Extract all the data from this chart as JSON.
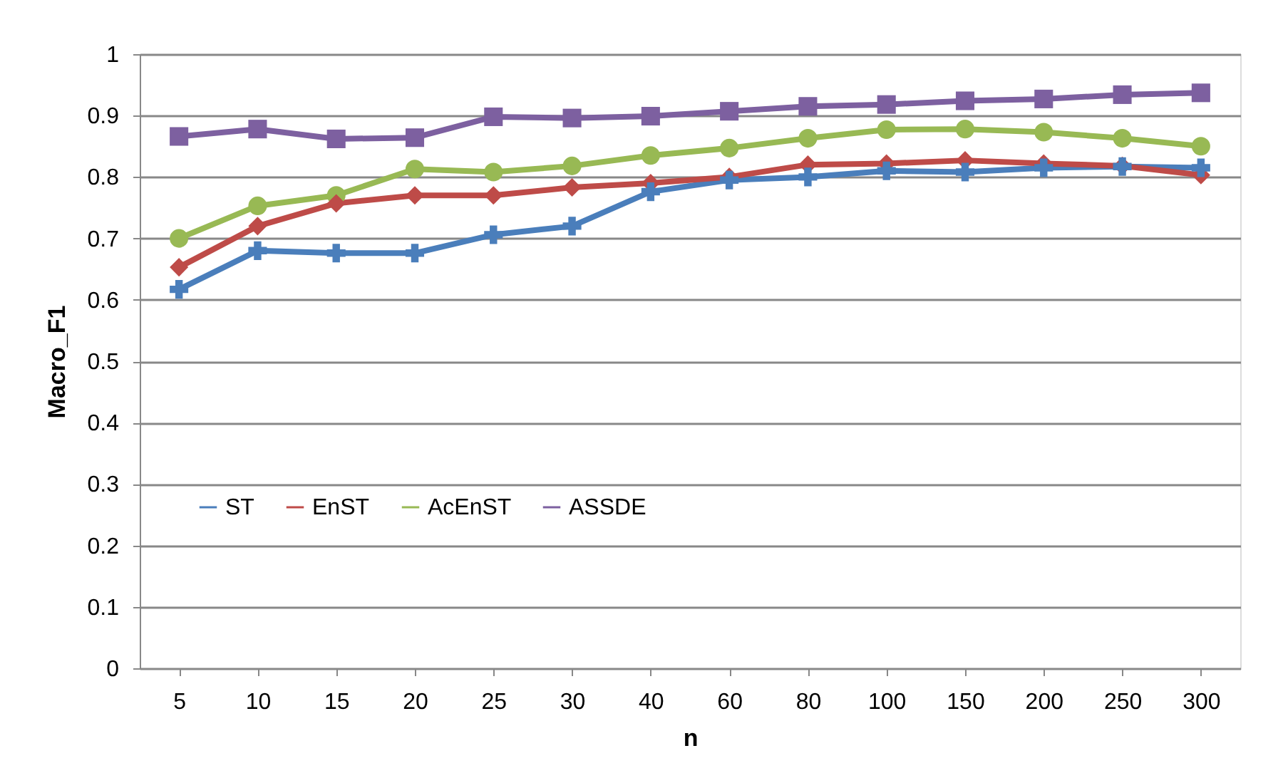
{
  "chart_data": {
    "type": "line",
    "xlabel": "n",
    "ylabel": "Macro_F1",
    "categories": [
      "5",
      "10",
      "15",
      "20",
      "25",
      "30",
      "40",
      "60",
      "80",
      "100",
      "150",
      "200",
      "250",
      "300"
    ],
    "series": [
      {
        "name": "ST",
        "color": "#4a7ebb",
        "marker": "cross",
        "values": [
          0.617,
          0.68,
          0.676,
          0.676,
          0.706,
          0.72,
          0.776,
          0.795,
          0.8,
          0.81,
          0.808,
          0.815,
          0.817,
          0.815
        ]
      },
      {
        "name": "EnST",
        "color": "#be4b48",
        "marker": "diamond",
        "values": [
          0.653,
          0.72,
          0.757,
          0.77,
          0.77,
          0.783,
          0.79,
          0.8,
          0.82,
          0.822,
          0.827,
          0.822,
          0.818,
          0.803
        ]
      },
      {
        "name": "AcEnST",
        "color": "#98b954",
        "marker": "circle",
        "values": [
          0.7,
          0.753,
          0.77,
          0.813,
          0.808,
          0.818,
          0.835,
          0.847,
          0.863,
          0.877,
          0.878,
          0.873,
          0.863,
          0.85
        ]
      },
      {
        "name": "ASSDE",
        "color": "#7d60a0",
        "marker": "square",
        "values": [
          0.866,
          0.878,
          0.862,
          0.864,
          0.898,
          0.896,
          0.899,
          0.907,
          0.915,
          0.918,
          0.924,
          0.927,
          0.934,
          0.937
        ]
      }
    ],
    "ylim": [
      0,
      1
    ],
    "yticks": [
      0,
      0.1,
      0.2,
      0.3,
      0.4,
      0.5,
      0.6,
      0.7,
      0.8,
      0.9,
      1
    ],
    "grid": "y",
    "legend": "bottom left",
    "line_style": "solid"
  }
}
